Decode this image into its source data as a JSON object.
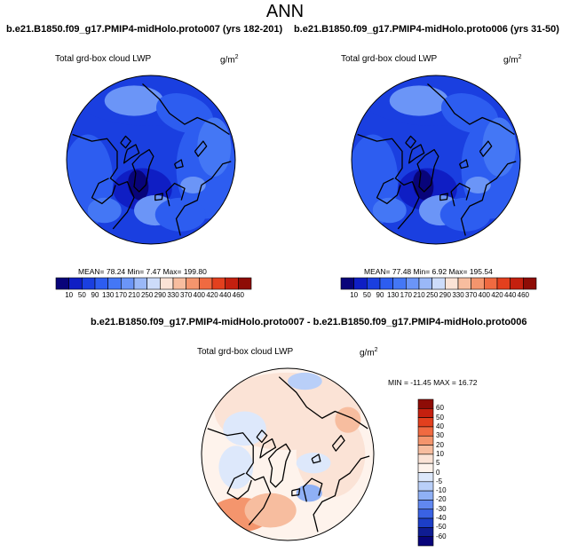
{
  "title": "ANN",
  "panels": [
    {
      "case": "b.e21.B1850.f09_g17.PMIP4-midHolo.proto007 (yrs 182-201)",
      "variable": "Total grd-box cloud LWP",
      "units": "g/m",
      "units_sup": "2",
      "stats": "MEAN= 78.24  Min= 7.47  Max= 199.80",
      "colorbar_ticks": [
        "10",
        "50",
        "90",
        "130",
        "170",
        "210",
        "250",
        "290",
        "330",
        "370",
        "400",
        "420",
        "440",
        "460"
      ],
      "colorbar_colors": [
        "#08047a",
        "#0f1ec4",
        "#1a3fe0",
        "#2d5df0",
        "#4477f5",
        "#6b95f7",
        "#9ab8f8",
        "#cddcfa",
        "#fbe3d6",
        "#f7bd9f",
        "#f4956d",
        "#f06a41",
        "#e3401e",
        "#c4200f",
        "#8e0c06"
      ]
    },
    {
      "case": "b.e21.B1850.f09_g17.PMIP4-midHolo.proto006 (yrs 31-50)",
      "variable": "Total grd-box cloud LWP",
      "units": "g/m",
      "units_sup": "2",
      "stats": "MEAN= 77.48  Min= 6.92  Max= 195.54",
      "colorbar_ticks": [
        "10",
        "50",
        "90",
        "130",
        "170",
        "210",
        "250",
        "290",
        "330",
        "370",
        "400",
        "420",
        "440",
        "460"
      ],
      "colorbar_colors": [
        "#08047a",
        "#0f1ec4",
        "#1a3fe0",
        "#2d5df0",
        "#4477f5",
        "#6b95f7",
        "#9ab8f8",
        "#cddcfa",
        "#fbe3d6",
        "#f7bd9f",
        "#f4956d",
        "#f06a41",
        "#e3401e",
        "#c4200f",
        "#8e0c06"
      ]
    }
  ],
  "diff": {
    "case": "b.e21.B1850.f09_g17.PMIP4-midHolo.proto007 - b.e21.B1850.f09_g17.PMIP4-midHolo.proto006",
    "variable": "Total grd-box cloud LWP",
    "units": "g/m",
    "units_sup": "2",
    "stats": "MIN = -11.45 MAX =  16.72",
    "colorbar_ticks": [
      "60",
      "50",
      "40",
      "30",
      "20",
      "10",
      "5",
      "0",
      "-5",
      "-10",
      "-20",
      "-30",
      "-40",
      "-50",
      "-60"
    ],
    "colorbar_colors": [
      "#8e0c06",
      "#c4200f",
      "#e3401e",
      "#f06a41",
      "#f4956d",
      "#f7bd9f",
      "#fbe3d6",
      "#fef3ec",
      "#dde8fb",
      "#b9cff8",
      "#8fb0f5",
      "#6188f0",
      "#3a62e3",
      "#1c3ec7",
      "#0f1c93",
      "#08047a"
    ]
  }
}
